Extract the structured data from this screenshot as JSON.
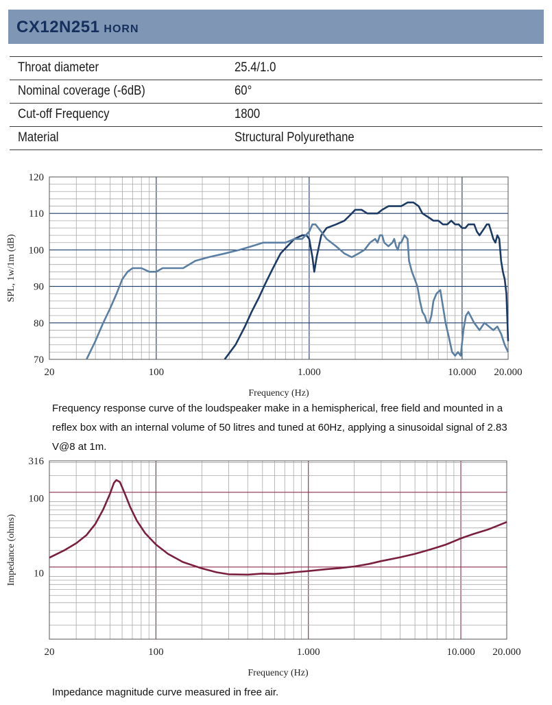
{
  "header": {
    "model": "CX12N251",
    "type": "HORN"
  },
  "specs": [
    {
      "label": "Throat diameter",
      "value": "25.4/1.0"
    },
    {
      "label": "Nominal coverage (-6dB)",
      "value": "60°"
    },
    {
      "label": "Cut-off Frequency",
      "value": "1800"
    },
    {
      "label": "Material",
      "value": "Structural Polyurethane"
    }
  ],
  "captions": {
    "frequency_response": "Frequency response curve of the loudspeaker make in a hemispherical, free field and mounted in a reflex box with an internal volume of 50 litres and tuned at 60Hz, applying a sinusoidal signal of 2.83 V@8 at 1m.",
    "impedance": "Impedance magnitude curve measured in free air."
  },
  "colors": {
    "header_bg": "#7f97b5",
    "header_text": "#142f5c",
    "spl_on_axis": "#1c3a66",
    "spl_off_axis": "#5a7fa3",
    "impedance_curve": "#7a1f3e",
    "impedance_grid": "#8b2a4a"
  },
  "chart_data": [
    {
      "type": "line",
      "xlabel": "Frequency (Hz)",
      "ylabel": "SPL, 1w/1m (dB)",
      "xscale": "log",
      "xlim": [
        20,
        20000
      ],
      "ylim": [
        70,
        120
      ],
      "x_ticks": [
        "20",
        "100",
        "1.000",
        "10.000",
        "20.000"
      ],
      "y_ticks": [
        "70",
        "80",
        "90",
        "100",
        "110",
        "120"
      ],
      "series": [
        {
          "points": [
            [
              280,
              70
            ],
            [
              330,
              74
            ],
            [
              380,
              79
            ],
            [
              420,
              83
            ],
            [
              470,
              87
            ],
            [
              520,
              91
            ],
            [
              580,
              95
            ],
            [
              650,
              99
            ],
            [
              720,
              101
            ],
            [
              800,
              103
            ],
            [
              900,
              104
            ],
            [
              960,
              104
            ],
            [
              1000,
              103
            ],
            [
              1050,
              98
            ],
            [
              1080,
              94
            ],
            [
              1120,
              98
            ],
            [
              1200,
              104
            ],
            [
              1300,
              106
            ],
            [
              1500,
              107
            ],
            [
              1700,
              108
            ],
            [
              1900,
              110
            ],
            [
              2000,
              111
            ],
            [
              2200,
              111
            ],
            [
              2400,
              110
            ],
            [
              2600,
              110
            ],
            [
              2800,
              110
            ],
            [
              3000,
              111
            ],
            [
              3300,
              112
            ],
            [
              3600,
              112
            ],
            [
              4000,
              112
            ],
            [
              4400,
              113
            ],
            [
              4800,
              113
            ],
            [
              5200,
              112
            ],
            [
              5500,
              110
            ],
            [
              6000,
              109
            ],
            [
              6500,
              108
            ],
            [
              7000,
              108
            ],
            [
              7500,
              107
            ],
            [
              8000,
              107
            ],
            [
              8500,
              108
            ],
            [
              9000,
              107
            ],
            [
              9500,
              107
            ],
            [
              10000,
              106
            ],
            [
              10500,
              106
            ],
            [
              11000,
              107
            ],
            [
              12000,
              107
            ],
            [
              12500,
              105
            ],
            [
              13000,
              104
            ],
            [
              13500,
              105
            ],
            [
              14000,
              106
            ],
            [
              14500,
              107
            ],
            [
              15000,
              107
            ],
            [
              15500,
              105
            ],
            [
              16000,
              103
            ],
            [
              16500,
              102
            ],
            [
              17000,
              104
            ],
            [
              17500,
              103
            ],
            [
              18000,
              97
            ],
            [
              18500,
              94
            ],
            [
              19000,
              92
            ],
            [
              19500,
              88
            ],
            [
              20000,
              75
            ]
          ]
        },
        {
          "points": [
            [
              35,
              70
            ],
            [
              40,
              75
            ],
            [
              45,
              80
            ],
            [
              50,
              84
            ],
            [
              55,
              88
            ],
            [
              60,
              92
            ],
            [
              65,
              94
            ],
            [
              70,
              95
            ],
            [
              80,
              95
            ],
            [
              90,
              94
            ],
            [
              100,
              94
            ],
            [
              110,
              95
            ],
            [
              130,
              95
            ],
            [
              150,
              95
            ],
            [
              180,
              97
            ],
            [
              220,
              98
            ],
            [
              280,
              99
            ],
            [
              350,
              100
            ],
            [
              420,
              101
            ],
            [
              500,
              102
            ],
            [
              600,
              102
            ],
            [
              700,
              102
            ],
            [
              800,
              103
            ],
            [
              900,
              103
            ],
            [
              1000,
              105
            ],
            [
              1050,
              107
            ],
            [
              1100,
              107
            ],
            [
              1200,
              105
            ],
            [
              1300,
              103
            ],
            [
              1500,
              101
            ],
            [
              1700,
              99
            ],
            [
              1900,
              98
            ],
            [
              2100,
              99
            ],
            [
              2300,
              100
            ],
            [
              2500,
              102
            ],
            [
              2700,
              103
            ],
            [
              2800,
              102
            ],
            [
              2900,
              104
            ],
            [
              3000,
              104
            ],
            [
              3100,
              102
            ],
            [
              3300,
              101
            ],
            [
              3500,
              102
            ],
            [
              3600,
              103
            ],
            [
              3700,
              101
            ],
            [
              3800,
              100
            ],
            [
              3900,
              102
            ],
            [
              4000,
              102
            ],
            [
              4200,
              104
            ],
            [
              4400,
              103
            ],
            [
              4500,
              97
            ],
            [
              4700,
              94
            ],
            [
              4900,
              92
            ],
            [
              5100,
              90
            ],
            [
              5300,
              86
            ],
            [
              5500,
              83
            ],
            [
              5700,
              82
            ],
            [
              5900,
              80
            ],
            [
              6100,
              80
            ],
            [
              6300,
              82
            ],
            [
              6500,
              86
            ],
            [
              6800,
              88
            ],
            [
              7200,
              89
            ],
            [
              7800,
              80
            ],
            [
              8200,
              76
            ],
            [
              8600,
              72
            ],
            [
              9000,
              71
            ],
            [
              9400,
              72
            ],
            [
              9800,
              71
            ],
            [
              10200,
              78
            ],
            [
              10600,
              82
            ],
            [
              11000,
              83
            ],
            [
              12000,
              80
            ],
            [
              13000,
              78
            ],
            [
              14000,
              80
            ],
            [
              15000,
              79
            ],
            [
              16000,
              78
            ],
            [
              17000,
              79
            ],
            [
              18000,
              77
            ],
            [
              19000,
              74
            ],
            [
              20000,
              72
            ]
          ]
        }
      ]
    },
    {
      "type": "line",
      "xlabel": "Frequency (Hz)",
      "ylabel": "Impedance (ohms)",
      "xscale": "log",
      "yscale": "log",
      "xlim": [
        20,
        20000
      ],
      "ylim": [
        1.3,
        316
      ],
      "x_ticks": [
        "20",
        "100",
        "1.000",
        "10.000",
        "20.000"
      ],
      "y_ticks": [
        "10",
        "100",
        "316"
      ],
      "series": [
        {
          "points": [
            [
              20,
              16
            ],
            [
              25,
              20
            ],
            [
              30,
              25
            ],
            [
              35,
              32
            ],
            [
              40,
              45
            ],
            [
              45,
              70
            ],
            [
              50,
              115
            ],
            [
              53,
              160
            ],
            [
              55,
              175
            ],
            [
              58,
              165
            ],
            [
              62,
              120
            ],
            [
              68,
              75
            ],
            [
              75,
              50
            ],
            [
              85,
              34
            ],
            [
              100,
              24
            ],
            [
              120,
              18
            ],
            [
              150,
              14
            ],
            [
              200,
              11.5
            ],
            [
              250,
              10.2
            ],
            [
              300,
              9.6
            ],
            [
              400,
              9.5
            ],
            [
              500,
              9.8
            ],
            [
              600,
              9.7
            ],
            [
              700,
              9.9
            ],
            [
              800,
              10.2
            ],
            [
              1000,
              10.6
            ],
            [
              1300,
              11.2
            ],
            [
              1600,
              11.6
            ],
            [
              2000,
              12.2
            ],
            [
              2500,
              13.2
            ],
            [
              3000,
              14.4
            ],
            [
              4000,
              16.2
            ],
            [
              5000,
              18
            ],
            [
              6000,
              20
            ],
            [
              7000,
              22
            ],
            [
              8000,
              24
            ],
            [
              9000,
              26.5
            ],
            [
              10000,
              29
            ],
            [
              12000,
              33
            ],
            [
              15000,
              38
            ],
            [
              18000,
              44
            ],
            [
              20000,
              48
            ]
          ]
        }
      ]
    }
  ]
}
